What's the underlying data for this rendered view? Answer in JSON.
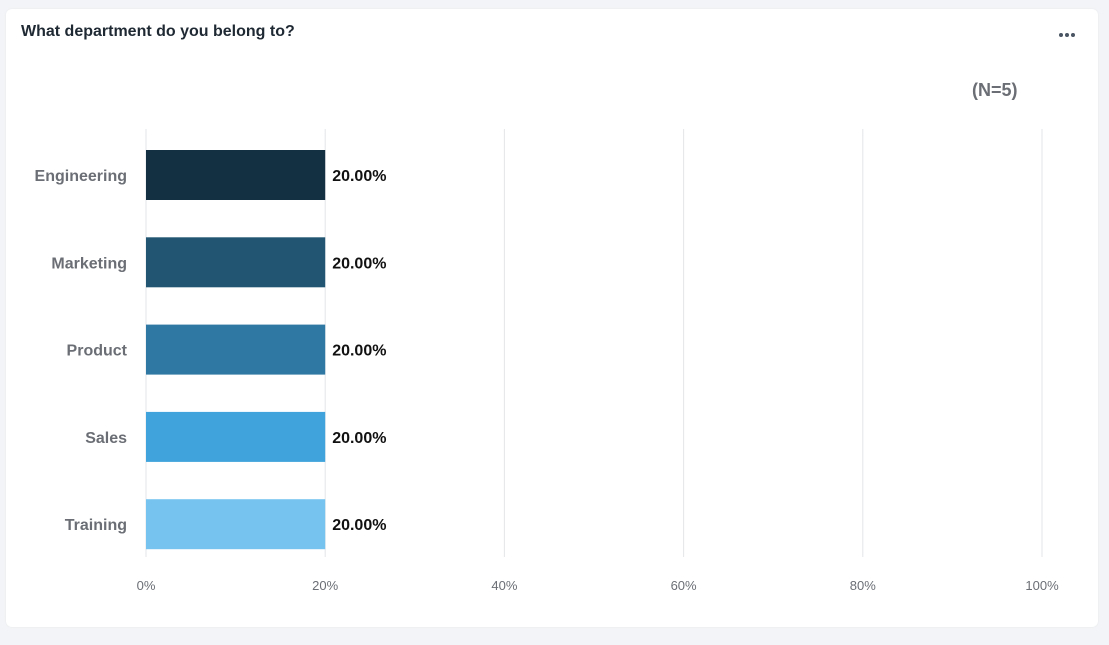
{
  "question": {
    "title": "What department do you belong to?"
  },
  "menu": {
    "icon": "more-horizontal-icon"
  },
  "sample": {
    "n_label": "(N=5)"
  },
  "chart_data": {
    "type": "bar",
    "orientation": "horizontal",
    "categories": [
      "Engineering",
      "Marketing",
      "Product",
      "Sales",
      "Training"
    ],
    "values": [
      20,
      20,
      20,
      20,
      20
    ],
    "value_labels": [
      "20.00%",
      "20.00%",
      "20.00%",
      "20.00%",
      "20.00%"
    ],
    "colors": [
      "#132f42",
      "#215572",
      "#2f78a3",
      "#40a3db",
      "#76c3f0"
    ],
    "xlim": [
      0,
      100
    ],
    "xticks": [
      0,
      20,
      40,
      60,
      80,
      100
    ],
    "xtick_labels": [
      "0%",
      "20%",
      "40%",
      "60%",
      "80%",
      "100%"
    ],
    "grid": true,
    "legend": "none"
  }
}
